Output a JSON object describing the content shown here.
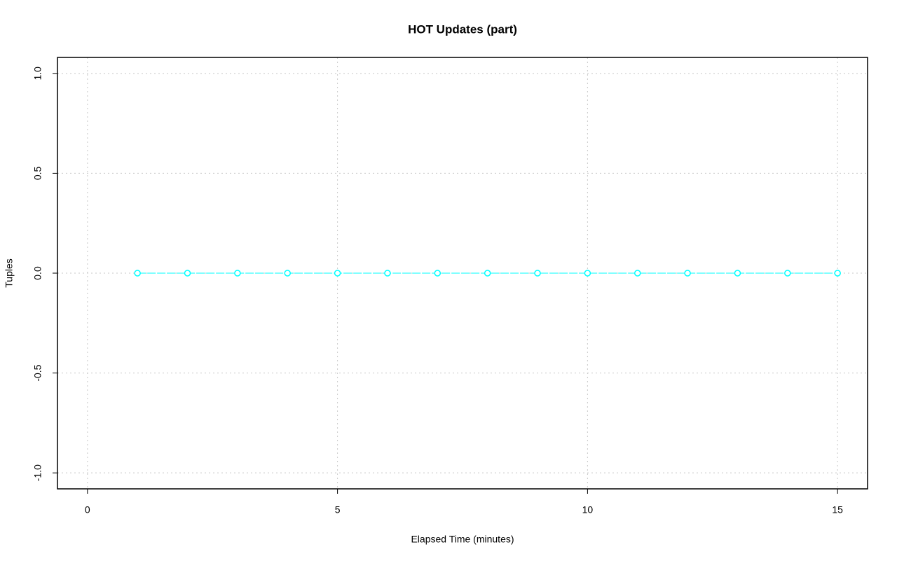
{
  "chart_data": {
    "type": "line",
    "title": "HOT Updates (part)",
    "x_label": "Elapsed Time (minutes)",
    "y_label": "Tuples",
    "x": [
      1,
      2,
      3,
      4,
      5,
      6,
      7,
      8,
      9,
      10,
      11,
      12,
      13,
      14,
      15
    ],
    "values": [
      0,
      0,
      0,
      0,
      0,
      0,
      0,
      0,
      0,
      0,
      0,
      0,
      0,
      0,
      0
    ],
    "color": "#00ffff",
    "xlim": [
      -0.6,
      15.6
    ],
    "xticks": [
      0,
      5,
      10,
      15
    ],
    "ylim": [
      -1.08,
      1.08
    ],
    "yticks": [
      {
        "value": -1,
        "label": "-1.0"
      },
      {
        "value": -0.5,
        "label": "-0.5"
      },
      {
        "value": 0,
        "label": "0.0"
      },
      {
        "value": 0.5,
        "label": "0.5"
      },
      {
        "value": 1,
        "label": "1.0"
      }
    ],
    "grid": true
  }
}
